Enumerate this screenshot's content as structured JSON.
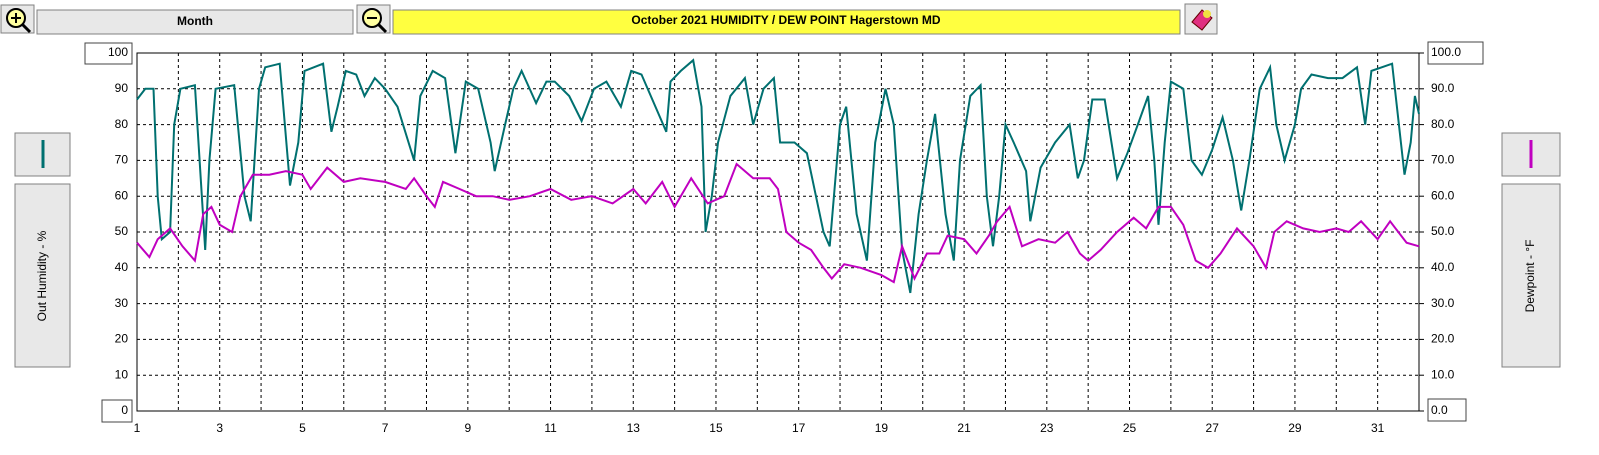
{
  "header": {
    "period_button": "Month"
  },
  "chart_data": {
    "type": "line",
    "title": "October  2021   HUMIDITY / DEW POINT  Hagerstown MD",
    "y_label": "Out Humidity - %",
    "y2_label": "Dewpoint - °F",
    "xlim": [
      1,
      32
    ],
    "xticks": [
      1,
      3,
      5,
      7,
      9,
      11,
      13,
      15,
      17,
      19,
      21,
      23,
      25,
      27,
      29,
      31
    ],
    "ylim": [
      0,
      100
    ],
    "yticks": [
      0,
      10,
      20,
      30,
      40,
      50,
      60,
      70,
      80,
      90,
      100
    ],
    "y2lim": [
      0,
      100
    ],
    "y2ticks": [
      {
        "value": 0,
        "label": "0.0"
      },
      {
        "value": 10,
        "label": "10.0"
      },
      {
        "value": 20,
        "label": "20.0"
      },
      {
        "value": 30,
        "label": "30.0"
      },
      {
        "value": 40,
        "label": "40.0"
      },
      {
        "value": 50,
        "label": "50.0"
      },
      {
        "value": 60,
        "label": "60.0"
      },
      {
        "value": 70,
        "label": "70.0"
      },
      {
        "value": 80,
        "label": "80.0"
      },
      {
        "value": 90,
        "label": "90.0"
      },
      {
        "value": 100,
        "label": "100.0"
      }
    ],
    "grid": true,
    "series": [
      {
        "color": "#007070",
        "x": [
          1.0,
          1.2,
          1.4,
          1.5,
          1.6,
          1.8,
          1.9,
          2.05,
          2.4,
          2.65,
          2.75,
          2.9,
          3.35,
          3.6,
          3.75,
          3.95,
          4.1,
          4.45,
          4.7,
          4.9,
          5.05,
          5.5,
          5.7,
          5.85,
          6.05,
          6.3,
          6.5,
          6.75,
          7.0,
          7.3,
          7.7,
          7.85,
          8.15,
          8.45,
          8.7,
          8.95,
          9.25,
          9.55,
          9.65,
          9.9,
          10.1,
          10.3,
          10.65,
          10.9,
          11.1,
          11.45,
          11.75,
          12.05,
          12.35,
          12.7,
          12.95,
          13.2,
          13.8,
          13.9,
          14.15,
          14.45,
          14.65,
          14.75,
          14.9,
          15.05,
          15.35,
          15.7,
          15.9,
          16.15,
          16.4,
          16.55,
          16.9,
          17.2,
          17.6,
          17.75,
          18.0,
          18.15,
          18.4,
          18.65,
          18.85,
          19.1,
          19.3,
          19.5,
          19.7,
          19.9,
          20.1,
          20.3,
          20.55,
          20.75,
          20.9,
          21.15,
          21.4,
          21.55,
          21.7,
          21.85,
          22.0,
          22.2,
          22.5,
          22.6,
          22.85,
          23.2,
          23.55,
          23.75,
          23.9,
          24.1,
          24.4,
          24.7,
          24.95,
          25.2,
          25.45,
          25.6,
          25.7,
          25.85,
          26.0,
          26.3,
          26.5,
          26.75,
          27.0,
          27.25,
          27.5,
          27.7,
          27.9,
          28.15,
          28.4,
          28.55,
          28.75,
          29.0,
          29.15,
          29.4,
          29.8,
          30.15,
          30.5,
          30.7,
          30.85,
          31.35,
          31.65,
          31.8,
          31.9,
          32.0
        ],
        "values": [
          87,
          90,
          90,
          60,
          48,
          50,
          80,
          90,
          91,
          45,
          70,
          90,
          91,
          60,
          53,
          90,
          96,
          97,
          63,
          75,
          95,
          97,
          78,
          85,
          95,
          94,
          88,
          93,
          90,
          85,
          70,
          88,
          95,
          93,
          72,
          92,
          90,
          75,
          67,
          80,
          90,
          95,
          86,
          92,
          92,
          88,
          81,
          90,
          92,
          85,
          95,
          94,
          78,
          92,
          95,
          98,
          85,
          50,
          60,
          75,
          88,
          93,
          80,
          90,
          93,
          75,
          75,
          72,
          50,
          46,
          80,
          85,
          55,
          42,
          75,
          90,
          80,
          45,
          33,
          55,
          70,
          83,
          55,
          42,
          70,
          88,
          91,
          60,
          46,
          60,
          80,
          75,
          67,
          53,
          68,
          75,
          80,
          65,
          70,
          87,
          87,
          65,
          72,
          80,
          88,
          70,
          52,
          75,
          92,
          90,
          70,
          66,
          73,
          82,
          70,
          56,
          70,
          90,
          96,
          80,
          70,
          80,
          90,
          94,
          93,
          93,
          96,
          80,
          95,
          97,
          66,
          75,
          88,
          83
        ]
      },
      {
        "color": "#c000c0",
        "axis": "y2",
        "x": [
          1.0,
          1.3,
          1.5,
          1.8,
          2.1,
          2.4,
          2.6,
          2.8,
          3.0,
          3.3,
          3.5,
          3.8,
          4.2,
          4.6,
          5.0,
          5.2,
          5.6,
          6.0,
          6.4,
          7.0,
          7.5,
          7.7,
          8.0,
          8.2,
          8.4,
          8.8,
          9.2,
          9.6,
          10.0,
          10.5,
          11.0,
          11.5,
          12.0,
          12.5,
          13.0,
          13.3,
          13.7,
          14.0,
          14.4,
          14.8,
          15.2,
          15.5,
          15.9,
          16.3,
          16.5,
          16.7,
          17.0,
          17.3,
          17.6,
          17.8,
          18.1,
          18.5,
          19.0,
          19.3,
          19.5,
          19.8,
          20.1,
          20.4,
          20.6,
          21.0,
          21.3,
          21.6,
          21.8,
          22.1,
          22.4,
          22.8,
          23.2,
          23.5,
          23.8,
          24.0,
          24.3,
          24.7,
          25.1,
          25.4,
          25.7,
          26.0,
          26.3,
          26.6,
          26.9,
          27.2,
          27.6,
          28.0,
          28.3,
          28.5,
          28.8,
          29.2,
          29.6,
          30.0,
          30.3,
          30.6,
          31.0,
          31.3,
          31.5,
          31.7,
          32.0
        ],
        "values": [
          47,
          43,
          48,
          51,
          46,
          42,
          55,
          57,
          52,
          50,
          60,
          66,
          66,
          67,
          66,
          62,
          68,
          64,
          65,
          64,
          62,
          65,
          60,
          57,
          64,
          62,
          60,
          60,
          59,
          60,
          62,
          59,
          60,
          58,
          62,
          58,
          64,
          57,
          65,
          58,
          60,
          69,
          65,
          65,
          62,
          50,
          47,
          45,
          40,
          37,
          41,
          40,
          38,
          36,
          46,
          37,
          44,
          44,
          49,
          48,
          44,
          49,
          53,
          57,
          46,
          48,
          47,
          50,
          44,
          42,
          45,
          50,
          54,
          51,
          57,
          57,
          52,
          42,
          40,
          44,
          51,
          46,
          40,
          50,
          53,
          51,
          50,
          51,
          50,
          53,
          48,
          53,
          50,
          47,
          46
        ]
      }
    ]
  }
}
